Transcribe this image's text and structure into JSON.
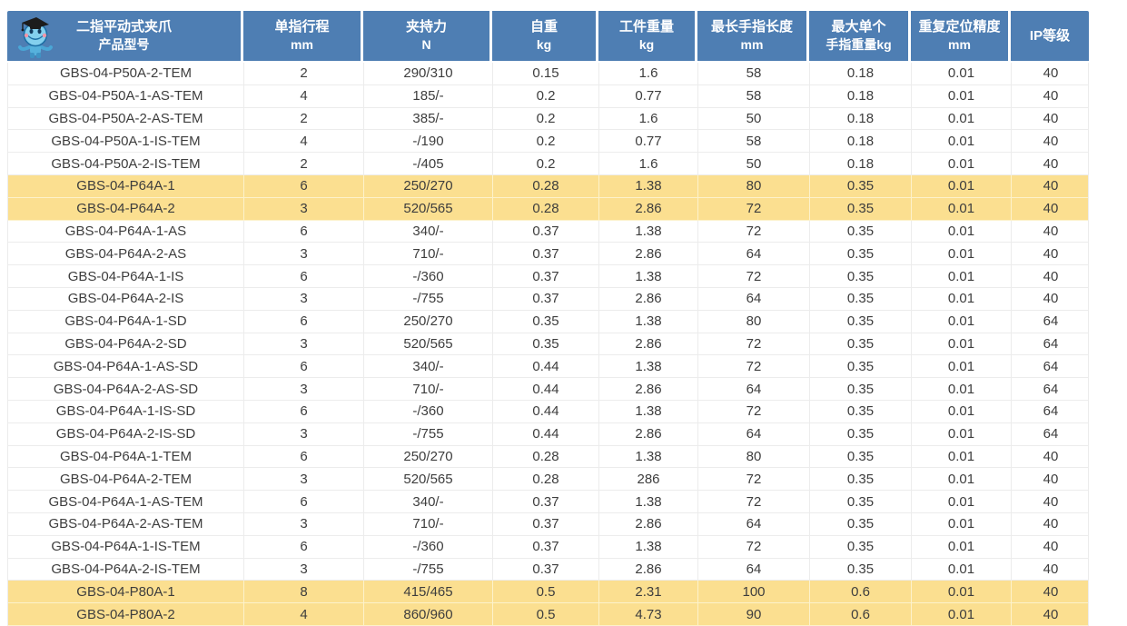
{
  "table": {
    "title_cell_icon": "robot-mascot-icon",
    "colors": {
      "header_bg": "#4e7eb3",
      "header_text": "#ffffff",
      "highlight_row_bg": "#fbdf90",
      "body_text": "#3d3d3d",
      "grid_line": "#ececec"
    },
    "header": {
      "columns": [
        {
          "line1": "二指平动式夹爪",
          "line2": "产品型号"
        },
        {
          "line1": "单指行程",
          "line2": "mm"
        },
        {
          "line1": "夹持力",
          "line2": "N"
        },
        {
          "line1": "自重",
          "line2": "kg"
        },
        {
          "line1": "工件重量",
          "line2": "kg"
        },
        {
          "line1": "最长手指长度",
          "line2": "mm"
        },
        {
          "line1": "最大单个",
          "line2": "手指重量kg"
        },
        {
          "line1": "重复定位精度",
          "line2": "mm"
        },
        {
          "line1": "IP等级",
          "line2": ""
        }
      ]
    },
    "rows": [
      {
        "model": "GBS-04-P50A-2-TEM",
        "stroke_mm": "2",
        "grip_force_N": "290/310",
        "self_weight_kg": "0.15",
        "workpiece_kg": "1.6",
        "max_finger_len_mm": "58",
        "max_finger_weight_kg": "0.18",
        "repeat_accuracy_mm": "0.01",
        "ip_rating": "40",
        "highlight": false
      },
      {
        "model": "GBS-04-P50A-1-AS-TEM",
        "stroke_mm": "4",
        "grip_force_N": "185/-",
        "self_weight_kg": "0.2",
        "workpiece_kg": "0.77",
        "max_finger_len_mm": "58",
        "max_finger_weight_kg": "0.18",
        "repeat_accuracy_mm": "0.01",
        "ip_rating": "40",
        "highlight": false
      },
      {
        "model": "GBS-04-P50A-2-AS-TEM",
        "stroke_mm": "2",
        "grip_force_N": "385/-",
        "self_weight_kg": "0.2",
        "workpiece_kg": "1.6",
        "max_finger_len_mm": "50",
        "max_finger_weight_kg": "0.18",
        "repeat_accuracy_mm": "0.01",
        "ip_rating": "40",
        "highlight": false
      },
      {
        "model": "GBS-04-P50A-1-IS-TEM",
        "stroke_mm": "4",
        "grip_force_N": "-/190",
        "self_weight_kg": "0.2",
        "workpiece_kg": "0.77",
        "max_finger_len_mm": "58",
        "max_finger_weight_kg": "0.18",
        "repeat_accuracy_mm": "0.01",
        "ip_rating": "40",
        "highlight": false
      },
      {
        "model": "GBS-04-P50A-2-IS-TEM",
        "stroke_mm": "2",
        "grip_force_N": "-/405",
        "self_weight_kg": "0.2",
        "workpiece_kg": "1.6",
        "max_finger_len_mm": "50",
        "max_finger_weight_kg": "0.18",
        "repeat_accuracy_mm": "0.01",
        "ip_rating": "40",
        "highlight": false
      },
      {
        "model": "GBS-04-P64A-1",
        "stroke_mm": "6",
        "grip_force_N": "250/270",
        "self_weight_kg": "0.28",
        "workpiece_kg": "1.38",
        "max_finger_len_mm": "80",
        "max_finger_weight_kg": "0.35",
        "repeat_accuracy_mm": "0.01",
        "ip_rating": "40",
        "highlight": true
      },
      {
        "model": "GBS-04-P64A-2",
        "stroke_mm": "3",
        "grip_force_N": "520/565",
        "self_weight_kg": "0.28",
        "workpiece_kg": "2.86",
        "max_finger_len_mm": "72",
        "max_finger_weight_kg": "0.35",
        "repeat_accuracy_mm": "0.01",
        "ip_rating": "40",
        "highlight": true
      },
      {
        "model": "GBS-04-P64A-1-AS",
        "stroke_mm": "6",
        "grip_force_N": "340/-",
        "self_weight_kg": "0.37",
        "workpiece_kg": "1.38",
        "max_finger_len_mm": "72",
        "max_finger_weight_kg": "0.35",
        "repeat_accuracy_mm": "0.01",
        "ip_rating": "40",
        "highlight": false
      },
      {
        "model": "GBS-04-P64A-2-AS",
        "stroke_mm": "3",
        "grip_force_N": "710/-",
        "self_weight_kg": "0.37",
        "workpiece_kg": "2.86",
        "max_finger_len_mm": "64",
        "max_finger_weight_kg": "0.35",
        "repeat_accuracy_mm": "0.01",
        "ip_rating": "40",
        "highlight": false
      },
      {
        "model": "GBS-04-P64A-1-IS",
        "stroke_mm": "6",
        "grip_force_N": "-/360",
        "self_weight_kg": "0.37",
        "workpiece_kg": "1.38",
        "max_finger_len_mm": "72",
        "max_finger_weight_kg": "0.35",
        "repeat_accuracy_mm": "0.01",
        "ip_rating": "40",
        "highlight": false
      },
      {
        "model": "GBS-04-P64A-2-IS",
        "stroke_mm": "3",
        "grip_force_N": "-/755",
        "self_weight_kg": "0.37",
        "workpiece_kg": "2.86",
        "max_finger_len_mm": "64",
        "max_finger_weight_kg": "0.35",
        "repeat_accuracy_mm": "0.01",
        "ip_rating": "40",
        "highlight": false
      },
      {
        "model": "GBS-04-P64A-1-SD",
        "stroke_mm": "6",
        "grip_force_N": "250/270",
        "self_weight_kg": "0.35",
        "workpiece_kg": "1.38",
        "max_finger_len_mm": "80",
        "max_finger_weight_kg": "0.35",
        "repeat_accuracy_mm": "0.01",
        "ip_rating": "64",
        "highlight": false
      },
      {
        "model": "GBS-04-P64A-2-SD",
        "stroke_mm": "3",
        "grip_force_N": "520/565",
        "self_weight_kg": "0.35",
        "workpiece_kg": "2.86",
        "max_finger_len_mm": "72",
        "max_finger_weight_kg": "0.35",
        "repeat_accuracy_mm": "0.01",
        "ip_rating": "64",
        "highlight": false
      },
      {
        "model": "GBS-04-P64A-1-AS-SD",
        "stroke_mm": "6",
        "grip_force_N": "340/-",
        "self_weight_kg": "0.44",
        "workpiece_kg": "1.38",
        "max_finger_len_mm": "72",
        "max_finger_weight_kg": "0.35",
        "repeat_accuracy_mm": "0.01",
        "ip_rating": "64",
        "highlight": false
      },
      {
        "model": "GBS-04-P64A-2-AS-SD",
        "stroke_mm": "3",
        "grip_force_N": "710/-",
        "self_weight_kg": "0.44",
        "workpiece_kg": "2.86",
        "max_finger_len_mm": "64",
        "max_finger_weight_kg": "0.35",
        "repeat_accuracy_mm": "0.01",
        "ip_rating": "64",
        "highlight": false
      },
      {
        "model": "GBS-04-P64A-1-IS-SD",
        "stroke_mm": "6",
        "grip_force_N": "-/360",
        "self_weight_kg": "0.44",
        "workpiece_kg": "1.38",
        "max_finger_len_mm": "72",
        "max_finger_weight_kg": "0.35",
        "repeat_accuracy_mm": "0.01",
        "ip_rating": "64",
        "highlight": false
      },
      {
        "model": "GBS-04-P64A-2-IS-SD",
        "stroke_mm": "3",
        "grip_force_N": "-/755",
        "self_weight_kg": "0.44",
        "workpiece_kg": "2.86",
        "max_finger_len_mm": "64",
        "max_finger_weight_kg": "0.35",
        "repeat_accuracy_mm": "0.01",
        "ip_rating": "64",
        "highlight": false
      },
      {
        "model": "GBS-04-P64A-1-TEM",
        "stroke_mm": "6",
        "grip_force_N": "250/270",
        "self_weight_kg": "0.28",
        "workpiece_kg": "1.38",
        "max_finger_len_mm": "80",
        "max_finger_weight_kg": "0.35",
        "repeat_accuracy_mm": "0.01",
        "ip_rating": "40",
        "highlight": false
      },
      {
        "model": "GBS-04-P64A-2-TEM",
        "stroke_mm": "3",
        "grip_force_N": "520/565",
        "self_weight_kg": "0.28",
        "workpiece_kg": "286",
        "max_finger_len_mm": "72",
        "max_finger_weight_kg": "0.35",
        "repeat_accuracy_mm": "0.01",
        "ip_rating": "40",
        "highlight": false
      },
      {
        "model": "GBS-04-P64A-1-AS-TEM",
        "stroke_mm": "6",
        "grip_force_N": "340/-",
        "self_weight_kg": "0.37",
        "workpiece_kg": "1.38",
        "max_finger_len_mm": "72",
        "max_finger_weight_kg": "0.35",
        "repeat_accuracy_mm": "0.01",
        "ip_rating": "40",
        "highlight": false
      },
      {
        "model": "GBS-04-P64A-2-AS-TEM",
        "stroke_mm": "3",
        "grip_force_N": "710/-",
        "self_weight_kg": "0.37",
        "workpiece_kg": "2.86",
        "max_finger_len_mm": "64",
        "max_finger_weight_kg": "0.35",
        "repeat_accuracy_mm": "0.01",
        "ip_rating": "40",
        "highlight": false
      },
      {
        "model": "GBS-04-P64A-1-IS-TEM",
        "stroke_mm": "6",
        "grip_force_N": "-/360",
        "self_weight_kg": "0.37",
        "workpiece_kg": "1.38",
        "max_finger_len_mm": "72",
        "max_finger_weight_kg": "0.35",
        "repeat_accuracy_mm": "0.01",
        "ip_rating": "40",
        "highlight": false
      },
      {
        "model": "GBS-04-P64A-2-IS-TEM",
        "stroke_mm": "3",
        "grip_force_N": "-/755",
        "self_weight_kg": "0.37",
        "workpiece_kg": "2.86",
        "max_finger_len_mm": "64",
        "max_finger_weight_kg": "0.35",
        "repeat_accuracy_mm": "0.01",
        "ip_rating": "40",
        "highlight": false
      },
      {
        "model": "GBS-04-P80A-1",
        "stroke_mm": "8",
        "grip_force_N": "415/465",
        "self_weight_kg": "0.5",
        "workpiece_kg": "2.31",
        "max_finger_len_mm": "100",
        "max_finger_weight_kg": "0.6",
        "repeat_accuracy_mm": "0.01",
        "ip_rating": "40",
        "highlight": true
      },
      {
        "model": "GBS-04-P80A-2",
        "stroke_mm": "4",
        "grip_force_N": "860/960",
        "self_weight_kg": "0.5",
        "workpiece_kg": "4.73",
        "max_finger_len_mm": "90",
        "max_finger_weight_kg": "0.6",
        "repeat_accuracy_mm": "0.01",
        "ip_rating": "40",
        "highlight": true
      }
    ]
  }
}
